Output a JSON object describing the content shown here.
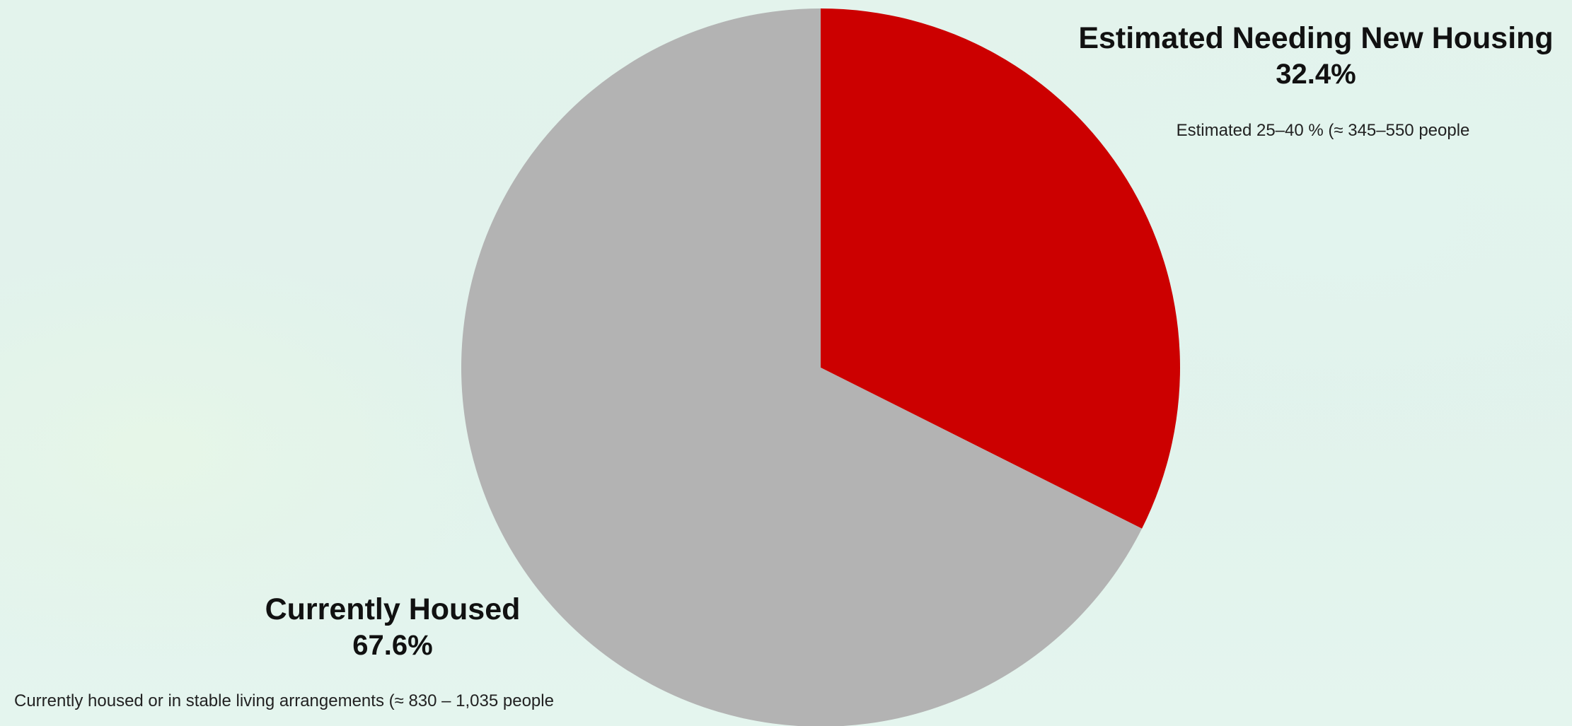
{
  "chart_data": {
    "type": "pie",
    "slices": [
      {
        "name": "Estimated Needing New Housing",
        "value": 32.4,
        "percent_label": "32.4%",
        "note": "Estimated 25–40 % (≈ 345–550 people",
        "color": "#cc0000"
      },
      {
        "name": "Currently Housed",
        "value": 67.6,
        "percent_label": "67.6%",
        "note": "Currently housed or in stable living arrangements (≈ 830 – 1,035 people",
        "color": "#b3b3b3"
      }
    ],
    "start_angle": "top",
    "direction": "clockwise"
  }
}
